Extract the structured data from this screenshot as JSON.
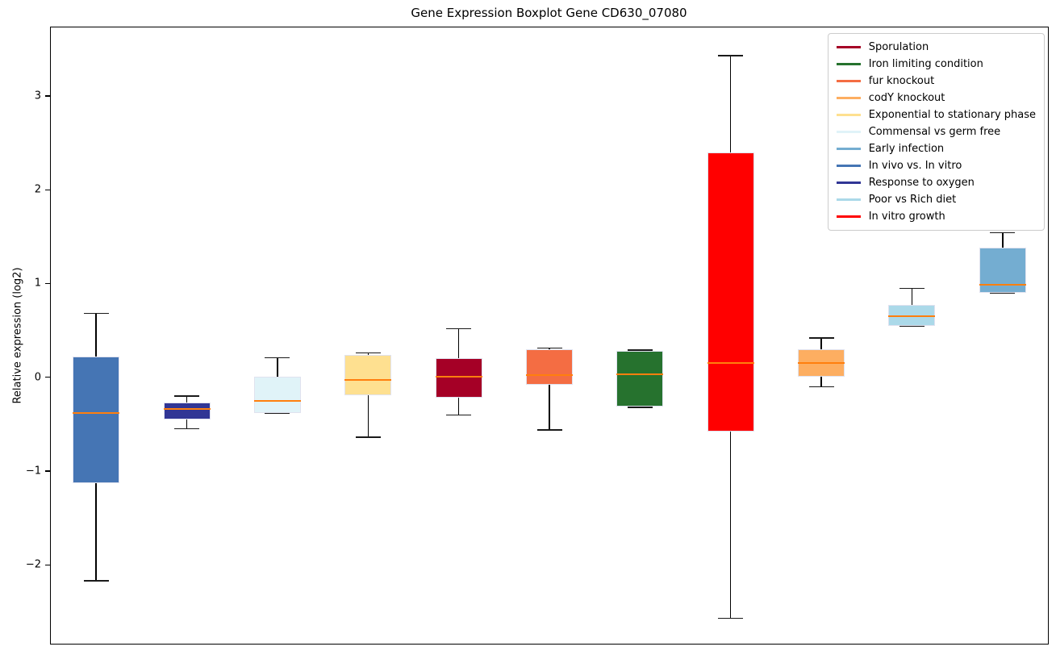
{
  "chart_data": {
    "type": "boxplot",
    "title": "Gene Expression Boxplot Gene CD630_07080",
    "ylabel": "Relative expression (log2)",
    "xlabel": "",
    "ylim": [
      -2.84,
      3.73
    ],
    "yticks": [
      3,
      2,
      1,
      0,
      -1,
      -2
    ],
    "grid": false,
    "legend_position": "upper right",
    "median_color": "#ff7f0e",
    "whisker_color": "#000000",
    "box_edge_color": "#e0e2ef",
    "boxes": [
      {
        "label": "In vivo vs. In vitro",
        "color": "#4575B4",
        "whisker_low": -2.17,
        "q1": -1.13,
        "median": -0.38,
        "q3": 0.22,
        "whisker_high": 0.68
      },
      {
        "label": "Response to oxygen",
        "color": "#313695",
        "whisker_low": -0.55,
        "q1": -0.45,
        "median": -0.34,
        "q3": -0.27,
        "whisker_high": -0.2
      },
      {
        "label": "Commensal vs germ free",
        "color": "#E0F3F8",
        "whisker_low": -0.38,
        "q1": -0.38,
        "median": -0.25,
        "q3": 0.01,
        "whisker_high": 0.21
      },
      {
        "label": "Exponential to stationary phase",
        "color": "#FEE090",
        "whisker_low": -0.64,
        "q1": -0.19,
        "median": -0.03,
        "q3": 0.24,
        "whisker_high": 0.26
      },
      {
        "label": "Sporulation",
        "color": "#A50026",
        "whisker_low": -0.4,
        "q1": -0.22,
        "median": 0.01,
        "q3": 0.2,
        "whisker_high": 0.52
      },
      {
        "label": "fur knockout",
        "color": "#F46D43",
        "whisker_low": -0.56,
        "q1": -0.08,
        "median": 0.02,
        "q3": 0.3,
        "whisker_high": 0.31
      },
      {
        "label": "Iron limiting condition",
        "color": "#26722E",
        "whisker_low": -0.32,
        "q1": -0.31,
        "median": 0.03,
        "q3": 0.28,
        "whisker_high": 0.29
      },
      {
        "label": "In vitro growth",
        "color": "#FF0000",
        "whisker_low": -2.57,
        "q1": -0.58,
        "median": 0.15,
        "q3": 2.4,
        "whisker_high": 3.43
      },
      {
        "label": "codY knockout",
        "color": "#FDAE61",
        "whisker_low": -0.1,
        "q1": 0.01,
        "median": 0.15,
        "q3": 0.3,
        "whisker_high": 0.42
      },
      {
        "label": "Poor vs Rich diet",
        "color": "#ABD9E9",
        "whisker_low": 0.55,
        "q1": 0.55,
        "median": 0.65,
        "q3": 0.77,
        "whisker_high": 0.95
      },
      {
        "label": "Early infection",
        "color": "#74ADD1",
        "whisker_low": 0.9,
        "q1": 0.9,
        "median": 0.99,
        "q3": 1.38,
        "whisker_high": 1.54
      }
    ],
    "legend": [
      {
        "label": "Sporulation",
        "color": "#A50026"
      },
      {
        "label": "Iron limiting condition",
        "color": "#26722E"
      },
      {
        "label": "fur knockout",
        "color": "#F46D43"
      },
      {
        "label": "codY knockout",
        "color": "#FDAE61"
      },
      {
        "label": "Exponential to stationary phase",
        "color": "#FEE090"
      },
      {
        "label": "Commensal vs germ free",
        "color": "#E0F3F8"
      },
      {
        "label": "Early infection",
        "color": "#74ADD1"
      },
      {
        "label": "In vivo vs. In vitro",
        "color": "#4575B4"
      },
      {
        "label": "Response to oxygen",
        "color": "#313695"
      },
      {
        "label": "Poor vs Rich diet",
        "color": "#ABD9E9"
      },
      {
        "label": "In vitro growth",
        "color": "#FF0000"
      }
    ]
  }
}
